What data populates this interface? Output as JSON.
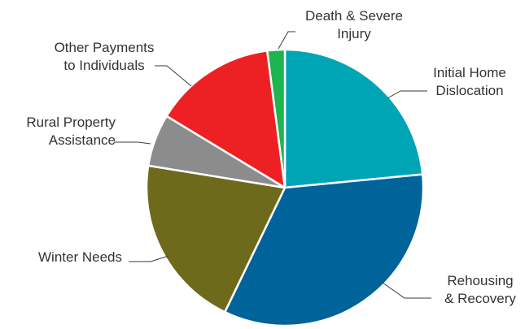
{
  "chart_data": {
    "type": "pie",
    "title": "",
    "legend": "none",
    "slices": [
      {
        "label": "Initial Home Dislocation",
        "label_lines": [
          "Initial Home",
          "Dislocation"
        ],
        "value": 23,
        "color": "#00a5b5"
      },
      {
        "label": "Rehousing & Recovery",
        "label_lines": [
          "Rehousing",
          "& Recovery"
        ],
        "value": 33,
        "color": "#00639a"
      },
      {
        "label": "Winter Needs",
        "label_lines": [
          "Winter Needs"
        ],
        "value": 20,
        "color": "#6e6a1c"
      },
      {
        "label": "Rural Property Assistance",
        "label_lines": [
          "Rural Property",
          "Assistance"
        ],
        "value": 6,
        "color": "#8c8c8c"
      },
      {
        "label": "Other Payments to Individuals",
        "label_lines": [
          "Other Payments",
          "to Individuals"
        ],
        "value": 14,
        "color": "#ed2124"
      },
      {
        "label": "Death & Severe Injury",
        "label_lines": [
          "Death & Severe",
          "Injury"
        ],
        "value": 2,
        "color": "#1db54f"
      }
    ]
  }
}
